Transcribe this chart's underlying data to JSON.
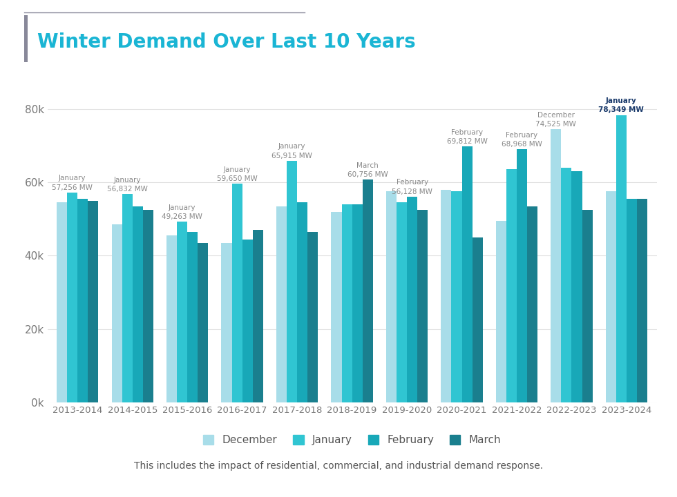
{
  "title": "Winter Demand Over Last 10 Years",
  "categories": [
    "2013-2014",
    "2014-2015",
    "2015-2016",
    "2016-2017",
    "2017-2018",
    "2018-2019",
    "2019-2020",
    "2020-2021",
    "2021-2022",
    "2022-2023",
    "2023-2024"
  ],
  "months": [
    "December",
    "January",
    "February",
    "March"
  ],
  "colors": {
    "December": "#a8dde9",
    "January": "#30c5d2",
    "February": "#18a8b8",
    "March": "#1a7f8e"
  },
  "data": {
    "December": [
      54500,
      48500,
      45500,
      43500,
      53500,
      52000,
      57500,
      58000,
      49500,
      74525,
      57500
    ],
    "January": [
      57256,
      56832,
      49263,
      59650,
      65915,
      54000,
      54500,
      57500,
      63500,
      64000,
      78349
    ],
    "February": [
      55500,
      53500,
      46500,
      44500,
      54500,
      54000,
      56128,
      69812,
      68968,
      63000,
      55500
    ],
    "March": [
      55000,
      52500,
      43500,
      47000,
      46500,
      60756,
      52500,
      45000,
      53500,
      52500,
      55500
    ]
  },
  "peak_labels": {
    "2013-2014": {
      "month": "January",
      "value": "57,256 MW"
    },
    "2014-2015": {
      "month": "January",
      "value": "56,832 MW"
    },
    "2015-2016": {
      "month": "January",
      "value": "49,263 MW"
    },
    "2016-2017": {
      "month": "January",
      "value": "59,650 MW"
    },
    "2017-2018": {
      "month": "January",
      "value": "65,915 MW"
    },
    "2018-2019": {
      "month": "March",
      "value": "60,756 MW"
    },
    "2019-2020": {
      "month": "February",
      "value": "56,128 MW"
    },
    "2020-2021": {
      "month": "February",
      "value": "69,812 MW"
    },
    "2021-2022": {
      "month": "February",
      "value": "68,968 MW"
    },
    "2022-2023": {
      "month": "December",
      "value": "74,525 MW"
    },
    "2023-2024": {
      "month": "January",
      "value": "78,349 MW"
    }
  },
  "peak_label_color": "#888888",
  "peak_label_bold_color": "#1a3a6b",
  "ylim": [
    0,
    88000
  ],
  "yticks": [
    0,
    20000,
    40000,
    60000,
    80000
  ],
  "ytick_labels": [
    "0k",
    "20k",
    "40k",
    "60k",
    "80k"
  ],
  "background_color": "#ffffff",
  "grid_color": "#e0e0e0",
  "title_color": "#1ab5d4",
  "accent_color": "#888899",
  "subtitle": "This includes the impact of residential, commercial, and industrial demand response.",
  "subtitle_color": "#555555",
  "bar_width": 0.19
}
